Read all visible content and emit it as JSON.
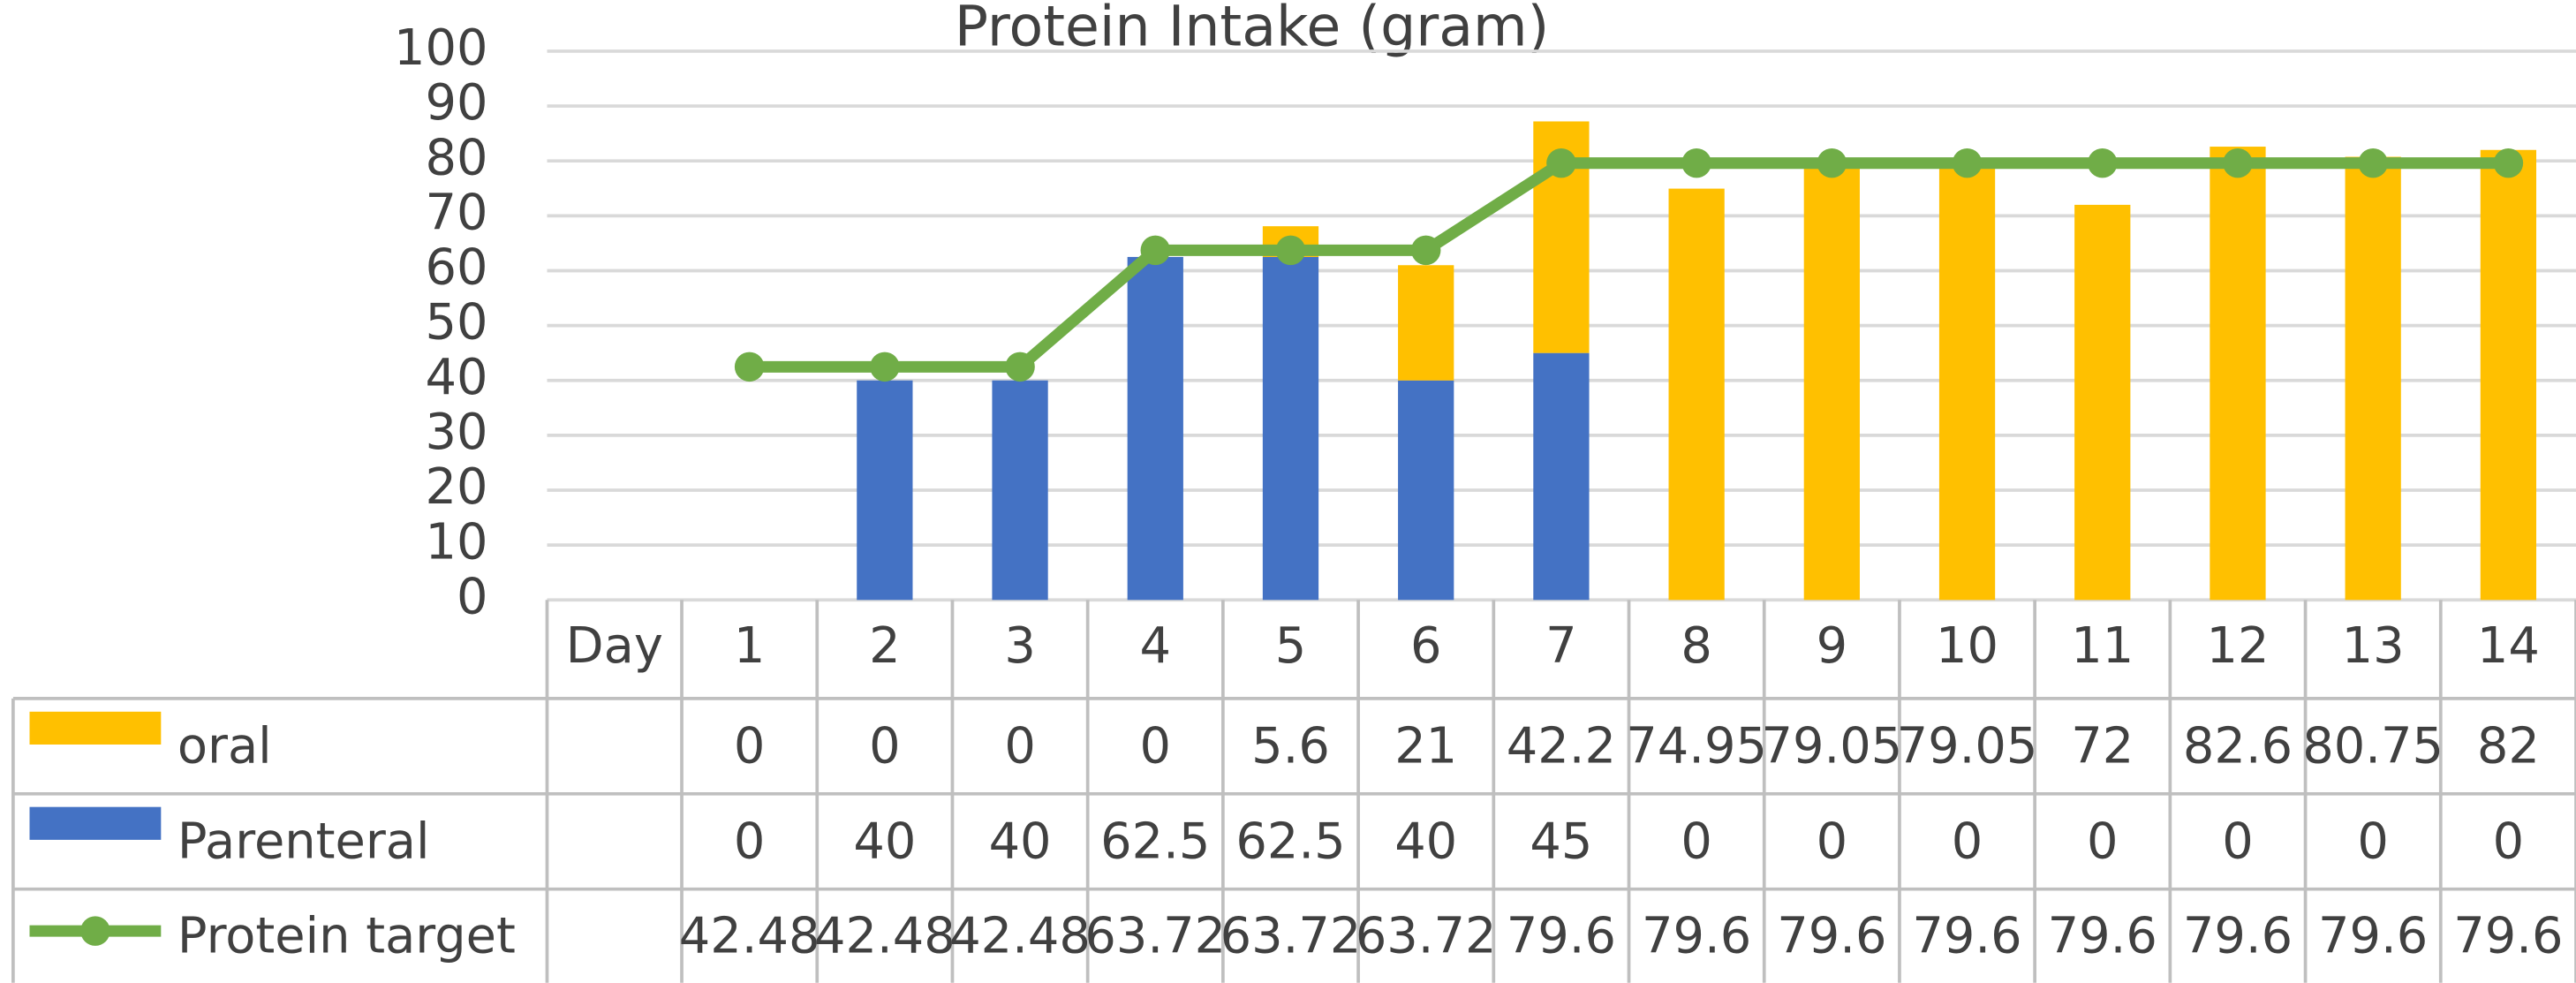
{
  "chart_data": {
    "type": "bar",
    "title": "Protein Intake (gram)",
    "x_label": "Day",
    "categories": [
      "1",
      "2",
      "3",
      "4",
      "5",
      "6",
      "7",
      "8",
      "9",
      "10",
      "11",
      "12",
      "13",
      "14"
    ],
    "series": [
      {
        "name": "oral",
        "type": "bar",
        "color": "#ffc000",
        "values": [
          0,
          0,
          0,
          0,
          5.6,
          21,
          42.2,
          74.95,
          79.05,
          79.05,
          72,
          82.6,
          80.75,
          82
        ]
      },
      {
        "name": "Parenteral",
        "type": "bar",
        "color": "#4472c4",
        "values": [
          0,
          40,
          40,
          62.5,
          62.5,
          40,
          45,
          0,
          0,
          0,
          0,
          0,
          0,
          0
        ]
      },
      {
        "name": "Protein target",
        "type": "line",
        "color": "#70ad47",
        "values": [
          42.48,
          42.48,
          42.48,
          63.72,
          63.72,
          63.72,
          79.6,
          79.6,
          79.6,
          79.6,
          79.6,
          79.6,
          79.6,
          79.6
        ]
      }
    ],
    "ylim": [
      0,
      100
    ],
    "yticks": [
      0,
      10,
      20,
      30,
      40,
      50,
      60,
      70,
      80,
      90,
      100
    ],
    "grid": true
  }
}
